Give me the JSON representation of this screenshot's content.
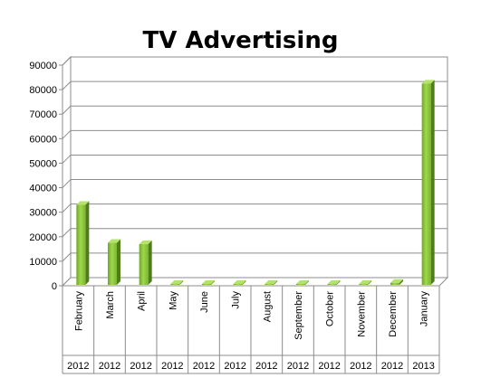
{
  "chart_data": {
    "type": "bar",
    "title": "TV Advertising",
    "categories": [
      "February",
      "March",
      "April",
      "May",
      "June",
      "July",
      "August",
      "September",
      "October",
      "November",
      "December",
      "January"
    ],
    "years": [
      "2012",
      "2012",
      "2012",
      "2012",
      "2012",
      "2012",
      "2012",
      "2012",
      "2012",
      "2012",
      "2012",
      "2013"
    ],
    "values": [
      33000,
      17500,
      17000,
      0,
      0,
      0,
      0,
      0,
      0,
      0,
      1200,
      82500
    ],
    "ylim": [
      0,
      90000
    ],
    "yticks": [
      0,
      10000,
      20000,
      30000,
      40000,
      50000,
      60000,
      70000,
      80000,
      90000
    ],
    "ytick_labels": [
      "0",
      "10000",
      "20000",
      "30000",
      "40000",
      "50000",
      "60000",
      "70000",
      "80000",
      "90000"
    ],
    "grid": true,
    "legend": "none",
    "bar_color": "#8dc63f"
  }
}
